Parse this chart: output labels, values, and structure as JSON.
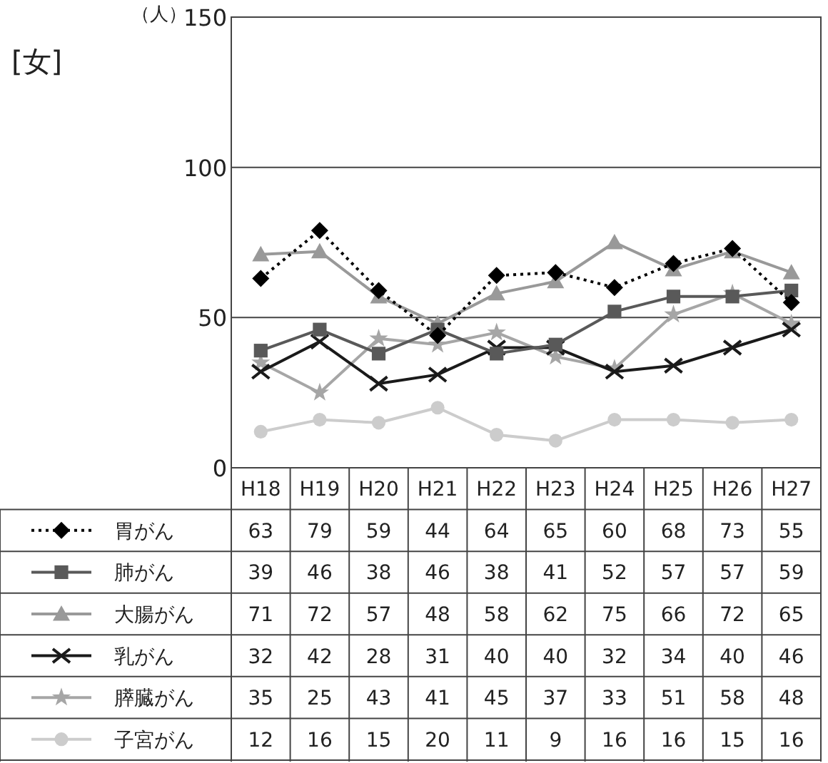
{
  "chart_data": {
    "type": "line",
    "title": "[女]",
    "ylabel": "（人）",
    "categories": [
      "H18",
      "H19",
      "H20",
      "H21",
      "H22",
      "H23",
      "H24",
      "H25",
      "H26",
      "H27"
    ],
    "series": [
      {
        "name": "胃がん",
        "color": "#000000",
        "marker": "diamond",
        "line_style": "dotted",
        "values": [
          63,
          79,
          59,
          44,
          64,
          65,
          60,
          68,
          73,
          55
        ]
      },
      {
        "name": "肺がん",
        "color": "#595959",
        "marker": "square",
        "line_style": "solid",
        "values": [
          39,
          46,
          38,
          46,
          38,
          41,
          52,
          57,
          57,
          59
        ]
      },
      {
        "name": "大腸がん",
        "color": "#999999",
        "marker": "triangle",
        "line_style": "solid",
        "values": [
          71,
          72,
          57,
          48,
          58,
          62,
          75,
          66,
          72,
          65
        ]
      },
      {
        "name": "乳がん",
        "color": "#1a1a1a",
        "marker": "cross",
        "line_style": "solid",
        "values": [
          32,
          42,
          28,
          31,
          40,
          40,
          32,
          34,
          40,
          46
        ]
      },
      {
        "name": "膵臓がん",
        "color": "#a6a6a6",
        "marker": "star",
        "line_style": "solid",
        "values": [
          35,
          25,
          43,
          41,
          45,
          37,
          33,
          51,
          58,
          48
        ]
      },
      {
        "name": "子宮がん",
        "color": "#cccccc",
        "marker": "circle",
        "line_style": "solid",
        "values": [
          12,
          16,
          15,
          20,
          11,
          9,
          16,
          16,
          15,
          16
        ]
      }
    ],
    "ylim": [
      0,
      150
    ],
    "yticks": [
      0,
      50,
      100,
      150
    ],
    "grid": "y",
    "legend": "bottom",
    "data_labels": true
  }
}
